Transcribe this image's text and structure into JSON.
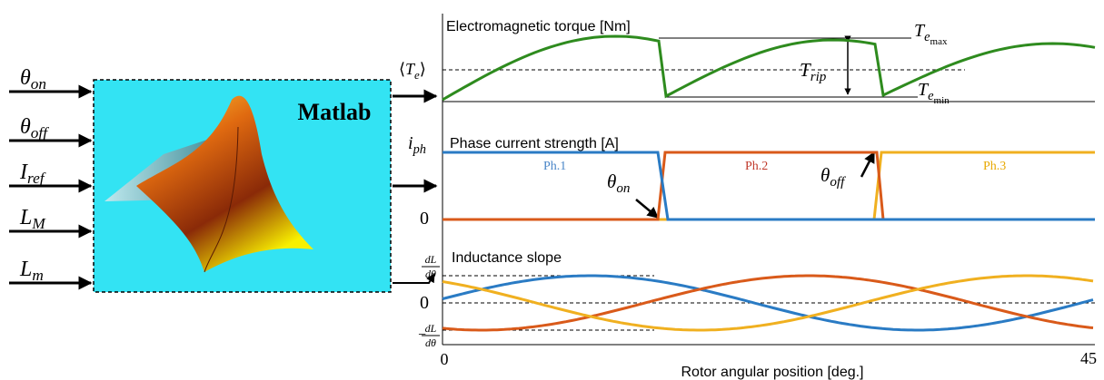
{
  "inputs": [
    {
      "symbol": "θ",
      "sub": "on"
    },
    {
      "symbol": "θ",
      "sub": "off"
    },
    {
      "symbol": "I",
      "sub": "ref"
    },
    {
      "symbol": "L",
      "sub": "M"
    },
    {
      "symbol": "L",
      "sub": "m"
    }
  ],
  "block_label": "Matlab",
  "torque": {
    "title": "Electromagnetic torque [Nm]",
    "mean": {
      "open": "⟨",
      "symbol": "T",
      "sub": "e",
      "close": "⟩"
    },
    "max": {
      "symbol": "T",
      "sub": "e",
      "subsub": "max"
    },
    "min": {
      "symbol": "T",
      "sub": "e",
      "subsub": "min"
    },
    "ripple": {
      "symbol": "T",
      "sub": "rip"
    }
  },
  "current": {
    "title": "Phase current strength [A]",
    "y_top": {
      "symbol": "i",
      "sub": "ph"
    },
    "y_zero": "0",
    "phases": [
      "Ph.1",
      "Ph.2",
      "Ph.3"
    ],
    "on": {
      "symbol": "θ",
      "sub": "on"
    },
    "off": {
      "symbol": "θ",
      "sub": "off"
    }
  },
  "inductance": {
    "title": "Inductance slope",
    "y_top": {
      "num": "dL",
      "den": "dθ"
    },
    "y_zero": "0",
    "y_bottom": {
      "sign": "−",
      "num": "dL",
      "den": "dθ"
    }
  },
  "x_axis": {
    "start": "0",
    "end": "45",
    "label": "Rotor angular position [deg.]"
  }
}
